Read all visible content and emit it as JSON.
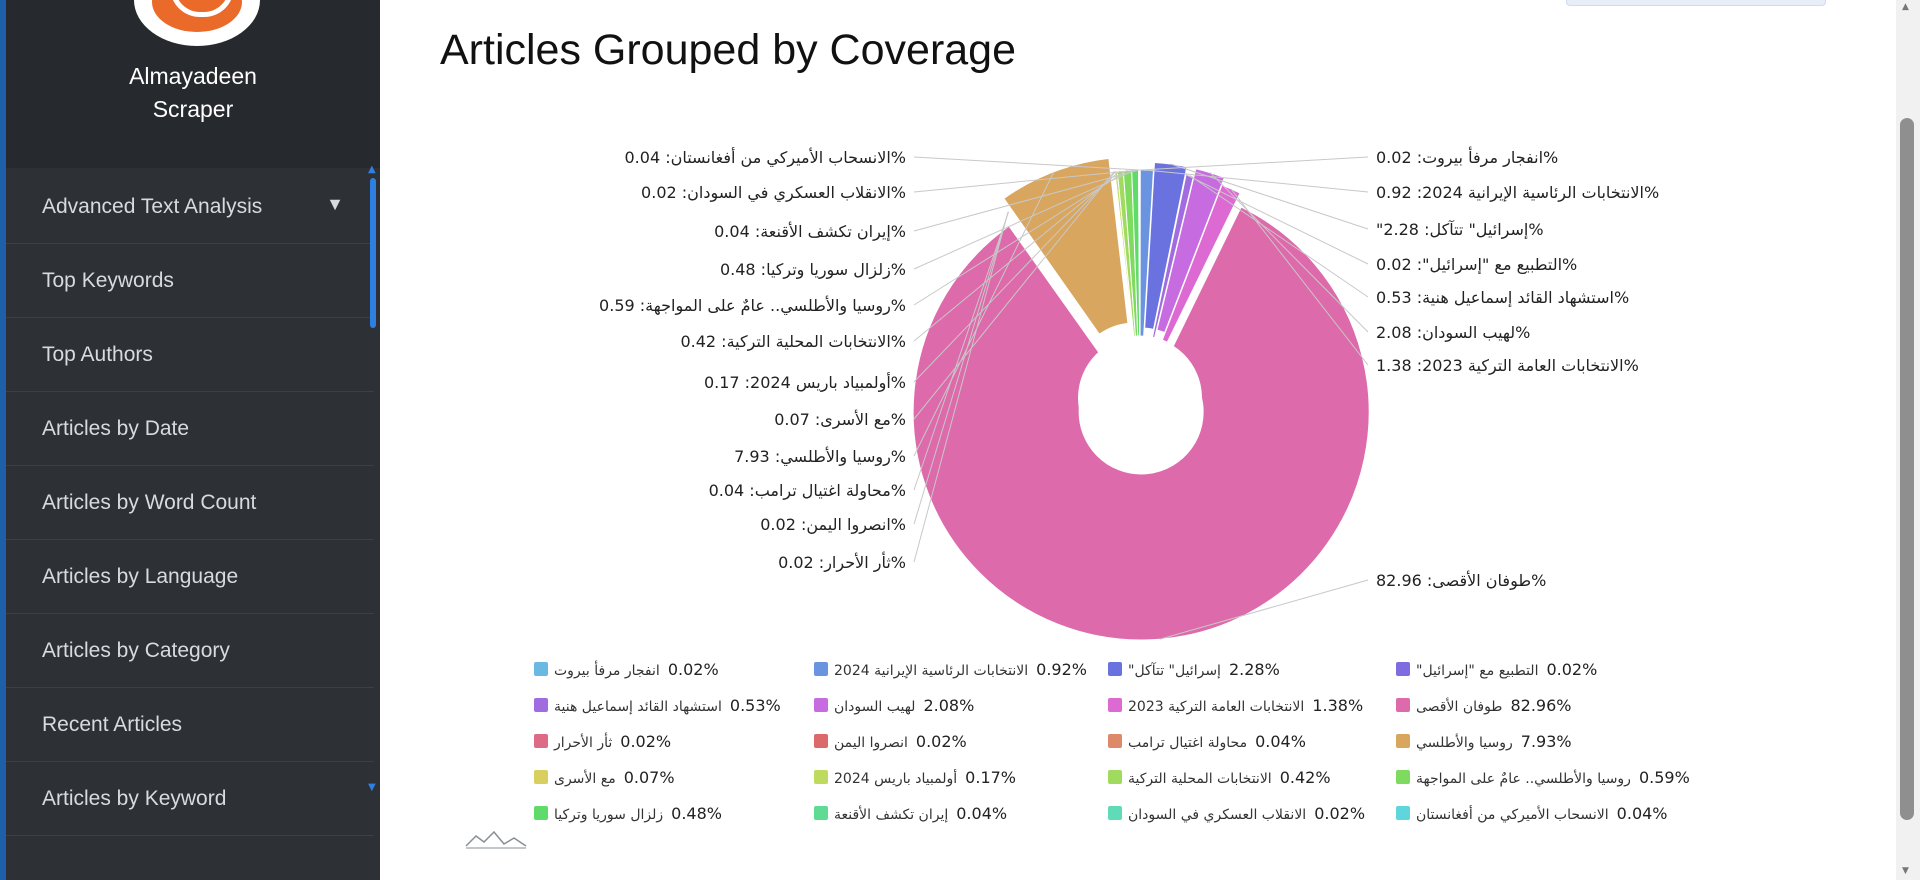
{
  "sidebar": {
    "brand": "Almayadeen\nScraper",
    "items": [
      {
        "label": "Advanced Text Analysis",
        "open": true
      },
      {
        "label": "Top Keywords"
      },
      {
        "label": "Top Authors"
      },
      {
        "label": "Articles by Date"
      },
      {
        "label": "Articles by Word Count"
      },
      {
        "label": "Articles by Language"
      },
      {
        "label": "Articles by Category"
      },
      {
        "label": "Recent Articles"
      },
      {
        "label": "Articles by Keyword"
      }
    ]
  },
  "page": {
    "title": "Articles Grouped by Coverage"
  },
  "colors": {
    "sidebar_bg": "#2d3135",
    "accent": "#2f7fe0"
  },
  "icons": [
    "chevron-down-icon",
    "scroll-up-arrow-icon",
    "scroll-down-arrow-icon",
    "chart-logo-icon"
  ],
  "chart_data": {
    "type": "pie",
    "donut": true,
    "legend_placement": "bottom",
    "series": [
      {
        "name": "انفجار مرفأ بيروت",
        "value": 0.02,
        "label": "%انفجار مرفأ بيروت: 0.02",
        "legend": "0.02%",
        "color": "#6bb9e3"
      },
      {
        "name": "الانتخابات الرئاسية الإيرانية 2024",
        "value": 0.92,
        "label": "%الانتخابات الرئاسية الإيرانية 2024: 0.92",
        "legend": "0.92%",
        "color": "#6a93e0"
      },
      {
        "name": "إسرائيل\" تتآكل\"",
        "value": 2.28,
        "label": "%إسرائيل\" تتآكل: 2.28\"",
        "legend": "2.28%",
        "color": "#6a72e0"
      },
      {
        "name": "التطبيع مع \"إسرائيل\"",
        "value": 0.02,
        "label": "%التطبيع مع \"إسرائيل\": 0.02",
        "legend": "0.02%",
        "color": "#7f6ce0"
      },
      {
        "name": "استشهاد القائد إسماعيل هنية",
        "value": 0.53,
        "label": "%استشهاد القائد إسماعيل هنية: 0.53",
        "legend": "0.53%",
        "color": "#a06ce0"
      },
      {
        "name": "لهيب السودان",
        "value": 2.08,
        "label": "%لهيب السودان: 2.08",
        "legend": "2.08%",
        "color": "#c66ce0"
      },
      {
        "name": "الانتخابات العامة التركية 2023",
        "value": 1.38,
        "label": "%الانتخابات العامة التركية 2023: 1.38",
        "legend": "1.38%",
        "color": "#dd6ad2"
      },
      {
        "name": "طوفان الأقصى",
        "value": 82.96,
        "label": "%طوفان الأقصى: 82.96",
        "legend": "82.96%",
        "color": "#dd6aab"
      },
      {
        "name": "ثأر الأحرار",
        "value": 0.02,
        "label": "%ثأر الأحرار: 0.02",
        "legend": "0.02%",
        "color": "#dd6a86"
      },
      {
        "name": "انصروا اليمن",
        "value": 0.02,
        "label": "%انصروا اليمن: 0.02",
        "legend": "0.02%",
        "color": "#dd6a6a"
      },
      {
        "name": "محاولة اغتيال ترامب",
        "value": 0.04,
        "label": "%محاولة اغتيال ترامب: 0.04",
        "legend": "0.04%",
        "color": "#dd8a6a"
      },
      {
        "name": "روسيا والأطلسي",
        "value": 7.93,
        "label": "%روسيا والأطلسي: 7.93",
        "legend": "7.93%",
        "color": "#d9a65f"
      },
      {
        "name": "مع الأسرى",
        "value": 0.07,
        "label": "%مع الأسرى: 0.07",
        "legend": "0.07%",
        "color": "#d9cf5f"
      },
      {
        "name": "أولمبياد باريس 2024",
        "value": 0.17,
        "label": "%أولمبياد باريس 2024: 0.17",
        "legend": "0.17%",
        "color": "#bedb5f"
      },
      {
        "name": "الانتخابات المحلية التركية",
        "value": 0.42,
        "label": "%الانتخابات المحلية التركية: 0.42",
        "legend": "0.42%",
        "color": "#a0db5f"
      },
      {
        "name": "روسيا والأطلسي.. عامٌ على المواجهة",
        "value": 0.59,
        "label": "%روسيا والأطلسي.. عامٌ على المواجهة: 0.59",
        "legend": "0.59%",
        "color": "#7edb5f"
      },
      {
        "name": "زلزال سوريا وتركيا",
        "value": 0.48,
        "label": "%زلزال سوريا وتركيا: 0.48",
        "legend": "0.48%",
        "color": "#5fdb6a"
      },
      {
        "name": "إيران تكشف الأقنعة",
        "value": 0.04,
        "label": "%إيران تكشف الأقنعة: 0.04",
        "legend": "0.04%",
        "color": "#5fdb93"
      },
      {
        "name": "الانقلاب العسكري في السودان",
        "value": 0.02,
        "label": "%الانقلاب العسكري في السودان: 0.02",
        "legend": "0.02%",
        "color": "#5fdbb8"
      },
      {
        "name": "الانسحاب الأميركي من أفغانستان",
        "value": 0.04,
        "label": "%الانسحاب الأميركي من أفغانستان: 0.04",
        "legend": "0.04%",
        "color": "#5fd6db"
      }
    ]
  }
}
